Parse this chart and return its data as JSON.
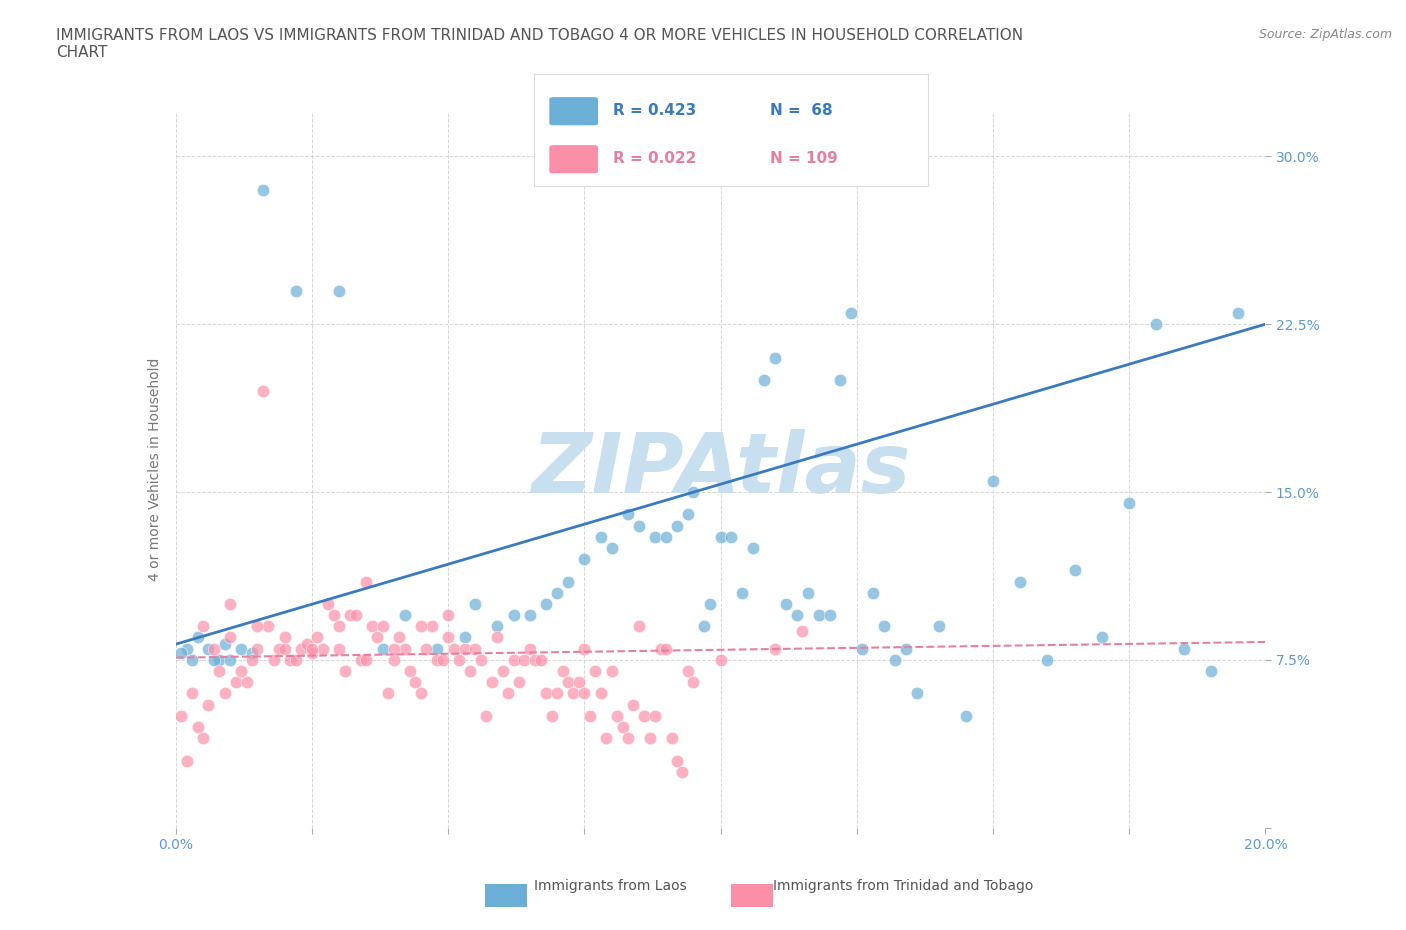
{
  "title_line1": "IMMIGRANTS FROM LAOS VS IMMIGRANTS FROM TRINIDAD AND TOBAGO 4 OR MORE VEHICLES IN HOUSEHOLD CORRELATION",
  "title_line2": "CHART",
  "source_text": "Source: ZipAtlas.com",
  "xlabel": "",
  "ylabel": "4 or more Vehicles in Household",
  "xlim": [
    0.0,
    0.2
  ],
  "ylim": [
    0.0,
    0.32
  ],
  "xticks": [
    0.0,
    0.025,
    0.05,
    0.075,
    0.1,
    0.125,
    0.15,
    0.175,
    0.2
  ],
  "xticklabels": [
    "0.0%",
    "",
    "",
    "",
    "",
    "",
    "",
    "",
    "20.0%"
  ],
  "yticks": [
    0.0,
    0.075,
    0.15,
    0.225,
    0.3
  ],
  "yticklabels": [
    "",
    "7.5%",
    "15.0%",
    "22.5%",
    "30.0%"
  ],
  "blue_color": "#6baed6",
  "pink_color": "#fc8fa8",
  "blue_line_color": "#3a7abf",
  "pink_line_color": "#e87fa0",
  "watermark": "ZIPAtlas",
  "legend_R1": "R = 0.423",
  "legend_N1": "N =  68",
  "legend_R2": "R = 0.022",
  "legend_N2": "N = 109",
  "label1": "Immigrants from Laos",
  "label2": "Immigrants from Trinidad and Tobago",
  "blue_scatter_x": [
    0.016,
    0.022,
    0.03,
    0.038,
    0.042,
    0.048,
    0.053,
    0.055,
    0.059,
    0.062,
    0.065,
    0.068,
    0.07,
    0.072,
    0.075,
    0.078,
    0.08,
    0.083,
    0.085,
    0.088,
    0.09,
    0.092,
    0.094,
    0.095,
    0.097,
    0.098,
    0.1,
    0.102,
    0.104,
    0.106,
    0.108,
    0.11,
    0.112,
    0.114,
    0.116,
    0.118,
    0.12,
    0.122,
    0.124,
    0.126,
    0.128,
    0.13,
    0.132,
    0.134,
    0.136,
    0.14,
    0.145,
    0.15,
    0.155,
    0.16,
    0.165,
    0.17,
    0.175,
    0.18,
    0.185,
    0.19,
    0.195,
    0.004,
    0.006,
    0.008,
    0.01,
    0.012,
    0.014,
    0.002,
    0.001,
    0.003,
    0.007,
    0.009
  ],
  "blue_scatter_y": [
    0.285,
    0.24,
    0.24,
    0.08,
    0.095,
    0.08,
    0.085,
    0.1,
    0.09,
    0.095,
    0.095,
    0.1,
    0.105,
    0.11,
    0.12,
    0.13,
    0.125,
    0.14,
    0.135,
    0.13,
    0.13,
    0.135,
    0.14,
    0.15,
    0.09,
    0.1,
    0.13,
    0.13,
    0.105,
    0.125,
    0.2,
    0.21,
    0.1,
    0.095,
    0.105,
    0.095,
    0.095,
    0.2,
    0.23,
    0.08,
    0.105,
    0.09,
    0.075,
    0.08,
    0.06,
    0.09,
    0.05,
    0.155,
    0.11,
    0.075,
    0.115,
    0.085,
    0.145,
    0.225,
    0.08,
    0.07,
    0.23,
    0.085,
    0.08,
    0.075,
    0.075,
    0.08,
    0.078,
    0.08,
    0.078,
    0.075,
    0.075,
    0.082
  ],
  "pink_scatter_x": [
    0.001,
    0.002,
    0.003,
    0.004,
    0.005,
    0.006,
    0.007,
    0.008,
    0.009,
    0.01,
    0.011,
    0.012,
    0.013,
    0.014,
    0.015,
    0.016,
    0.017,
    0.018,
    0.019,
    0.02,
    0.021,
    0.022,
    0.023,
    0.024,
    0.025,
    0.026,
    0.027,
    0.028,
    0.029,
    0.03,
    0.031,
    0.032,
    0.033,
    0.034,
    0.035,
    0.036,
    0.037,
    0.038,
    0.039,
    0.04,
    0.041,
    0.042,
    0.043,
    0.044,
    0.045,
    0.046,
    0.047,
    0.048,
    0.049,
    0.05,
    0.051,
    0.052,
    0.053,
    0.054,
    0.055,
    0.056,
    0.057,
    0.058,
    0.059,
    0.06,
    0.061,
    0.062,
    0.063,
    0.064,
    0.065,
    0.066,
    0.067,
    0.068,
    0.069,
    0.07,
    0.071,
    0.072,
    0.073,
    0.074,
    0.075,
    0.076,
    0.077,
    0.078,
    0.079,
    0.08,
    0.081,
    0.082,
    0.083,
    0.084,
    0.085,
    0.086,
    0.087,
    0.088,
    0.089,
    0.09,
    0.091,
    0.092,
    0.093,
    0.094,
    0.095,
    0.1,
    0.11,
    0.115,
    0.05,
    0.075,
    0.035,
    0.025,
    0.015,
    0.005,
    0.04,
    0.02,
    0.03,
    0.01,
    0.045
  ],
  "pink_scatter_y": [
    0.05,
    0.03,
    0.06,
    0.045,
    0.04,
    0.055,
    0.08,
    0.07,
    0.06,
    0.085,
    0.065,
    0.07,
    0.065,
    0.075,
    0.08,
    0.195,
    0.09,
    0.075,
    0.08,
    0.08,
    0.075,
    0.075,
    0.08,
    0.082,
    0.078,
    0.085,
    0.08,
    0.1,
    0.095,
    0.08,
    0.07,
    0.095,
    0.095,
    0.075,
    0.11,
    0.09,
    0.085,
    0.09,
    0.06,
    0.075,
    0.085,
    0.08,
    0.07,
    0.065,
    0.06,
    0.08,
    0.09,
    0.075,
    0.075,
    0.095,
    0.08,
    0.075,
    0.08,
    0.07,
    0.08,
    0.075,
    0.05,
    0.065,
    0.085,
    0.07,
    0.06,
    0.075,
    0.065,
    0.075,
    0.08,
    0.075,
    0.075,
    0.06,
    0.05,
    0.06,
    0.07,
    0.065,
    0.06,
    0.065,
    0.06,
    0.05,
    0.07,
    0.06,
    0.04,
    0.07,
    0.05,
    0.045,
    0.04,
    0.055,
    0.09,
    0.05,
    0.04,
    0.05,
    0.08,
    0.08,
    0.04,
    0.03,
    0.025,
    0.07,
    0.065,
    0.075,
    0.08,
    0.088,
    0.085,
    0.08,
    0.075,
    0.08,
    0.09,
    0.09,
    0.08,
    0.085,
    0.09,
    0.1,
    0.09
  ],
  "blue_trend_x": [
    0.0,
    0.2
  ],
  "blue_trend_y": [
    0.082,
    0.225
  ],
  "pink_trend_x": [
    0.0,
    0.2
  ],
  "pink_trend_y": [
    0.076,
    0.083
  ],
  "background_color": "#ffffff",
  "grid_color": "#cccccc",
  "title_color": "#555555",
  "axis_color": "#5b9bd5",
  "watermark_color": "#c8dff0",
  "watermark_fontsize": 60,
  "title_fontsize": 11,
  "source_fontsize": 9,
  "legend_fontsize": 11,
  "ylabel_fontsize": 10,
  "tick_fontsize": 10
}
